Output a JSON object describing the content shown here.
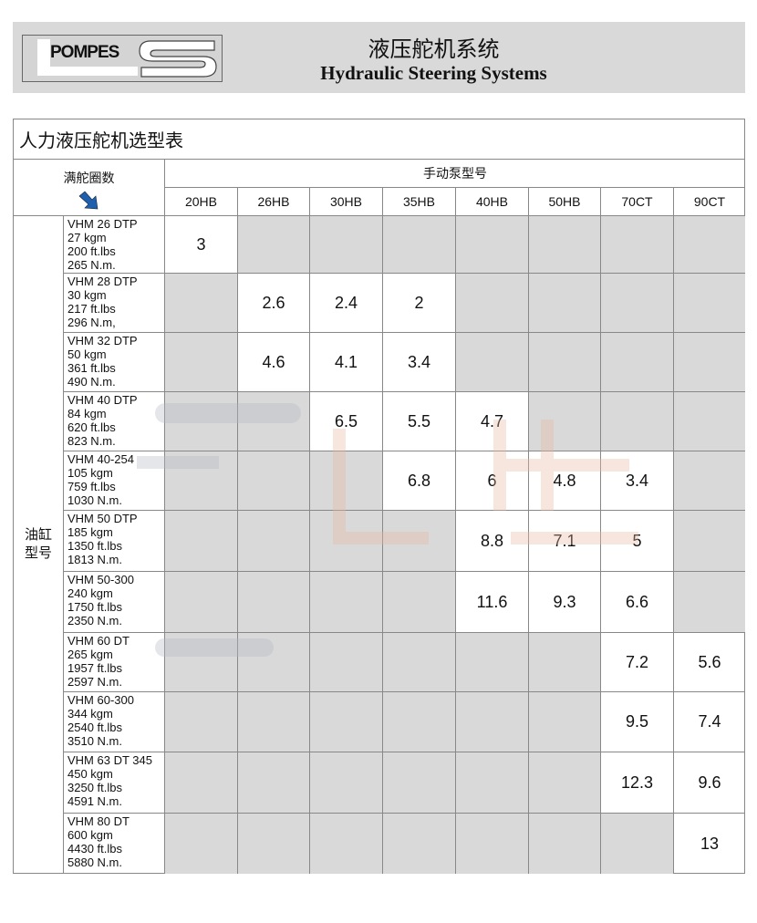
{
  "header": {
    "logo_text": "POMPES",
    "title_cn": "液压舵机系统",
    "title_en": "Hydraulic Steering Systems"
  },
  "table": {
    "title": "人力液压舵机选型表",
    "corner_label": "满舵圈数",
    "pump_group_label": "手动泵型号",
    "cylinder_group_label": "油缸型号",
    "pumps": [
      "20HB",
      "26HB",
      "30HB",
      "35HB",
      "40HB",
      "50HB",
      "70CT",
      "90CT"
    ],
    "rows": [
      {
        "model": [
          "VHM 26 DTP",
          "27 kgm",
          "200 ft.lbs",
          "265 N.m."
        ],
        "values": [
          "3",
          null,
          null,
          null,
          null,
          null,
          null,
          null
        ]
      },
      {
        "model": [
          "VHM 28 DTP",
          "30 kgm",
          "217 ft.lbs",
          "296 N.m,"
        ],
        "values": [
          null,
          "2.6",
          "2.4",
          "2",
          null,
          null,
          null,
          null
        ]
      },
      {
        "model": [
          "VHM 32 DTP",
          "50 kgm",
          "361 ft.lbs",
          "490 N.m."
        ],
        "values": [
          null,
          "4.6",
          "4.1",
          "3.4",
          null,
          null,
          null,
          null
        ]
      },
      {
        "model": [
          "VHM 40 DTP",
          "84 kgm",
          "620 ft.lbs",
          "823 N.m."
        ],
        "values": [
          null,
          null,
          "6.5",
          "5.5",
          "4.7",
          null,
          null,
          null
        ]
      },
      {
        "model": [
          "VHM 40-254",
          "105 kgm",
          "759 ft.lbs",
          "1030 N.m."
        ],
        "values": [
          null,
          null,
          null,
          "6.8",
          "6",
          "4.8",
          "3.4",
          null
        ]
      },
      {
        "model": [
          "VHM 50 DTP",
          "185 kgm",
          "1350 ft.lbs",
          "1813 N.m."
        ],
        "values": [
          null,
          null,
          null,
          null,
          "8.8",
          "7.1",
          "5",
          null
        ]
      },
      {
        "model": [
          "VHM 50-300",
          "240 kgm",
          "1750 ft.lbs",
          "2350 N.m."
        ],
        "values": [
          null,
          null,
          null,
          null,
          "11.6",
          "9.3",
          "6.6",
          null
        ]
      },
      {
        "model": [
          "VHM 60 DT",
          "265 kgm",
          "1957 ft.lbs",
          "2597 N.m."
        ],
        "values": [
          null,
          null,
          null,
          null,
          null,
          null,
          "7.2",
          "5.6"
        ]
      },
      {
        "model": [
          "VHM 60-300",
          "344 kgm",
          "2540 ft.lbs",
          "3510 N.m."
        ],
        "values": [
          null,
          null,
          null,
          null,
          null,
          null,
          "9.5",
          "7.4"
        ]
      },
      {
        "model": [
          "VHM 63 DT 345",
          "450 kgm",
          "3250 ft.lbs",
          "4591 N.m."
        ],
        "values": [
          null,
          null,
          null,
          null,
          null,
          null,
          "12.3",
          "9.6"
        ]
      },
      {
        "model": [
          "VHM 80 DT",
          "600 kgm",
          "4430 ft.lbs",
          "5880 N.m."
        ],
        "values": [
          null,
          null,
          null,
          null,
          null,
          null,
          null,
          "13"
        ]
      }
    ]
  },
  "watermark": {
    "text_cn": "欧星",
    "text_en": "star"
  },
  "colors": {
    "empty_cell": "#d9d9d9",
    "arrow": "#1f5fae",
    "watermark_cn": "#e8b9a0"
  }
}
